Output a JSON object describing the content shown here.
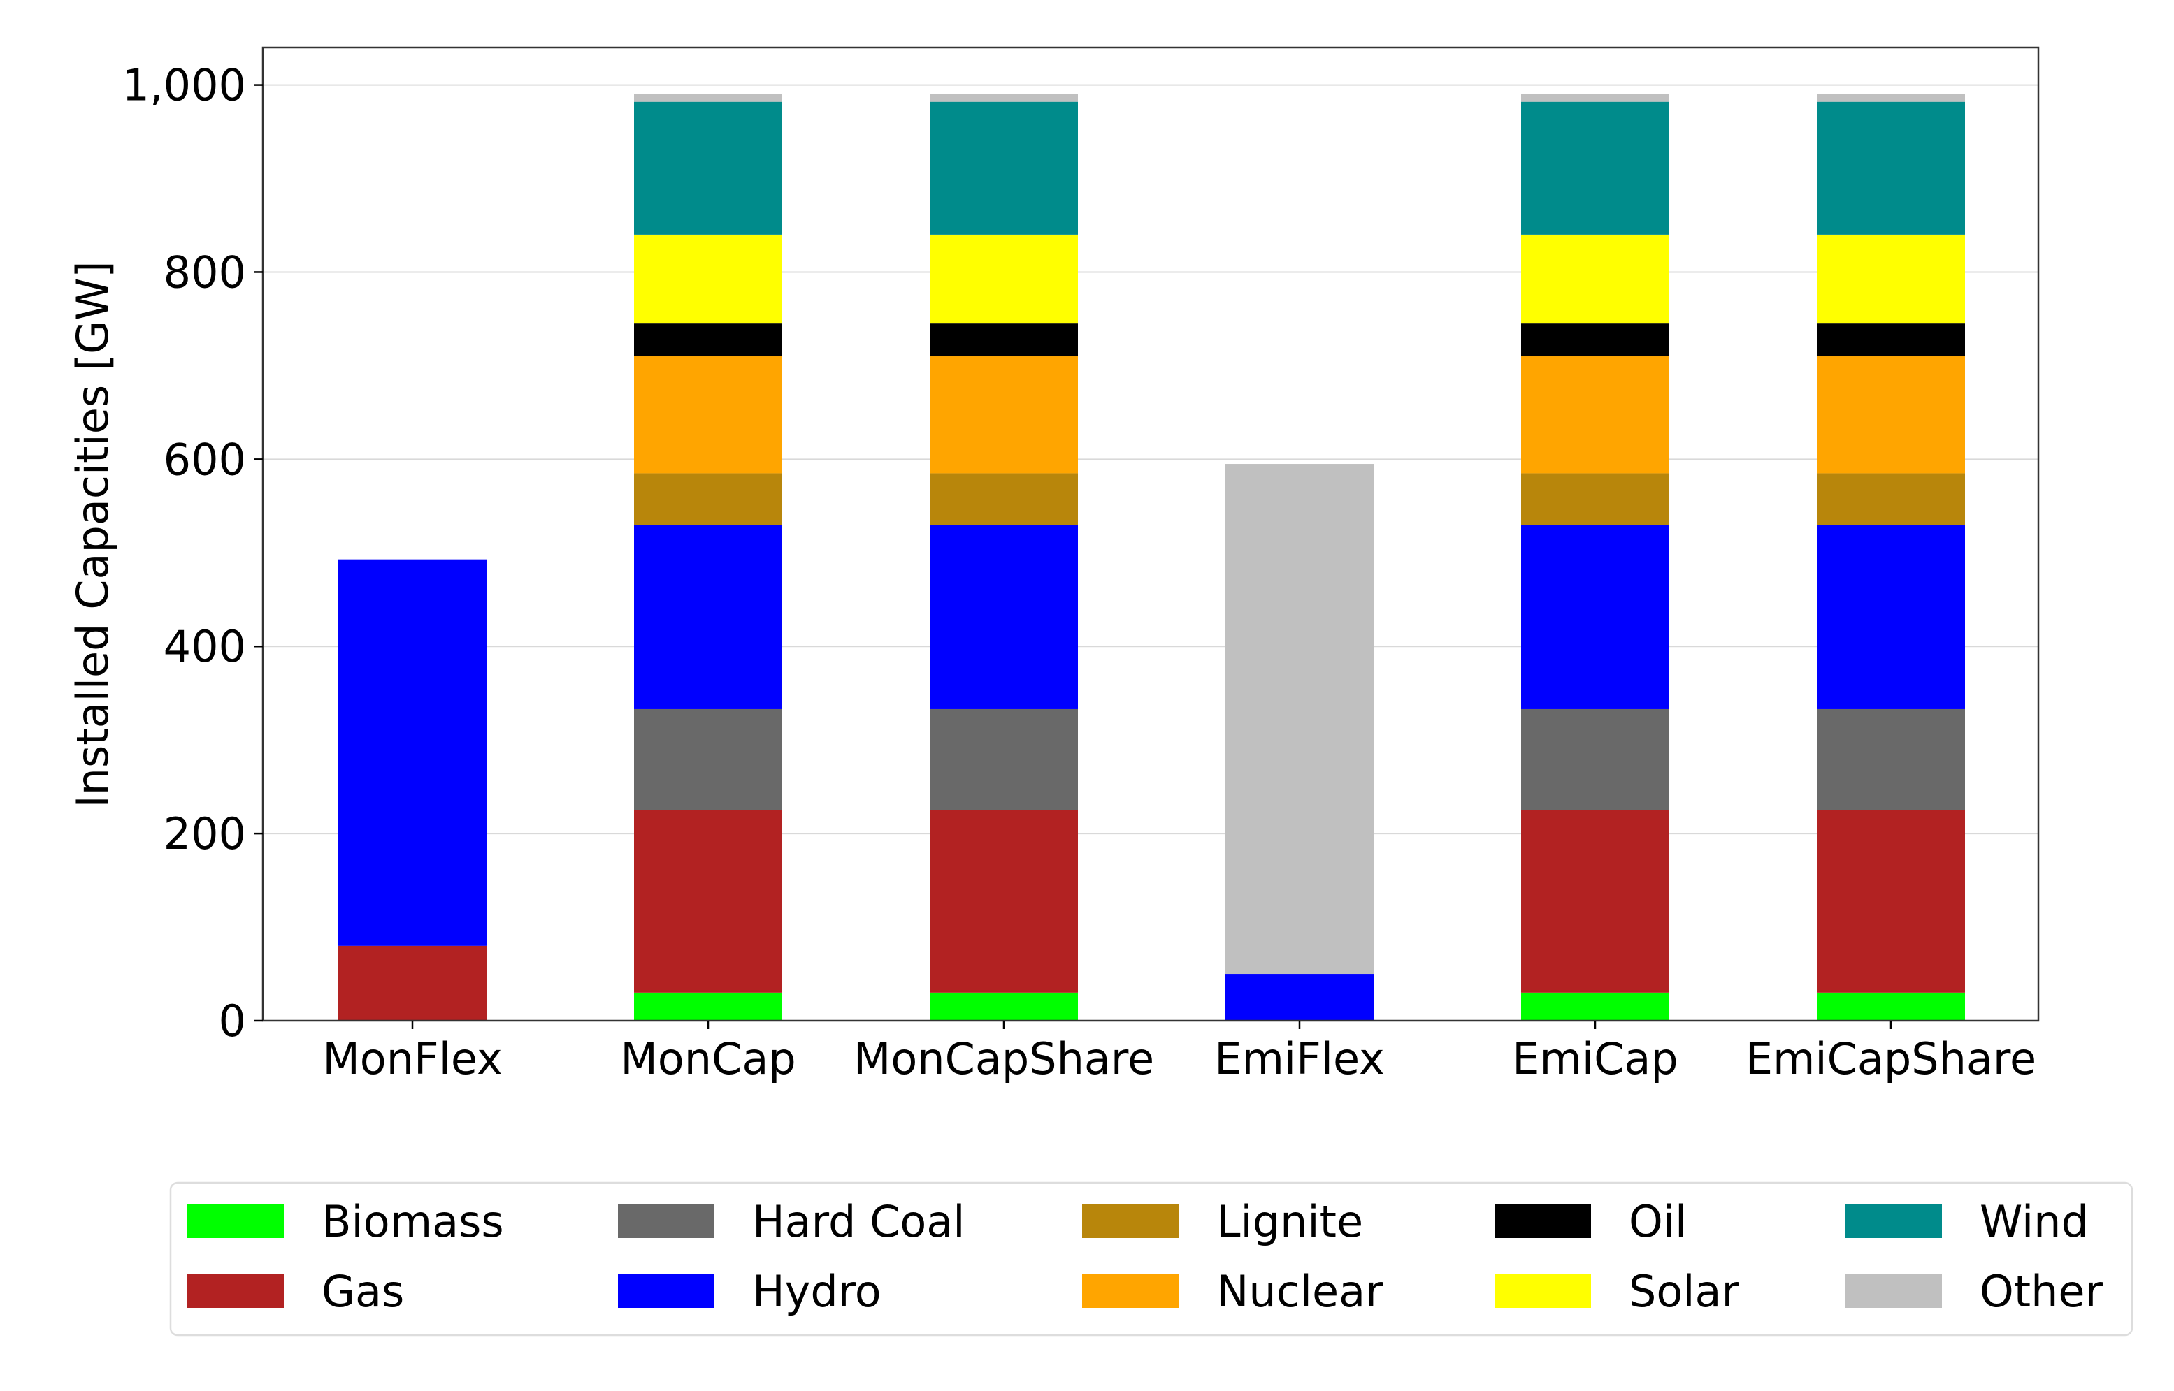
{
  "chart_data": {
    "type": "bar",
    "stacked": true,
    "title": "",
    "xlabel": "",
    "ylabel": "Installed Capacities [GW]",
    "ylim": [
      0,
      1000
    ],
    "yticks": [
      0,
      200,
      400,
      600,
      800,
      1000
    ],
    "ytick_labels": [
      "0",
      "200",
      "400",
      "600",
      "800",
      "1,000"
    ],
    "grid": true,
    "legend_position": "bottom",
    "categories": [
      "MonFlex",
      "MonCap",
      "MonCapShare",
      "EmiFlex",
      "EmiCap",
      "EmiCapShare"
    ],
    "series": [
      {
        "name": "Biomass",
        "color": "#00ff00",
        "values": [
          0,
          30,
          30,
          0,
          30,
          30
        ]
      },
      {
        "name": "Gas",
        "color": "#b22222",
        "values": [
          80,
          195,
          195,
          0,
          195,
          195
        ]
      },
      {
        "name": "Hard Coal",
        "color": "#696969",
        "values": [
          0,
          108,
          108,
          0,
          108,
          108
        ]
      },
      {
        "name": "Hydro",
        "color": "#0000ff",
        "values": [
          413,
          197,
          197,
          50,
          197,
          197
        ]
      },
      {
        "name": "Lignite",
        "color": "#b8860b",
        "values": [
          0,
          55,
          55,
          0,
          55,
          55
        ]
      },
      {
        "name": "Nuclear",
        "color": "#ffa500",
        "values": [
          0,
          125,
          125,
          0,
          125,
          125
        ]
      },
      {
        "name": "Oil",
        "color": "#000000",
        "values": [
          0,
          35,
          35,
          0,
          35,
          35
        ]
      },
      {
        "name": "Solar",
        "color": "#ffff00",
        "values": [
          0,
          95,
          95,
          0,
          95,
          95
        ]
      },
      {
        "name": "Wind",
        "color": "#008b8b",
        "values": [
          0,
          142,
          142,
          0,
          142,
          142
        ]
      },
      {
        "name": "Other",
        "color": "#c0c0c0",
        "values": [
          0,
          8,
          8,
          545,
          8,
          8
        ]
      }
    ],
    "legend_order": [
      "Biomass",
      "Gas",
      "Hard Coal",
      "Hydro",
      "Lignite",
      "Nuclear",
      "Oil",
      "Solar",
      "Wind",
      "Other"
    ]
  }
}
